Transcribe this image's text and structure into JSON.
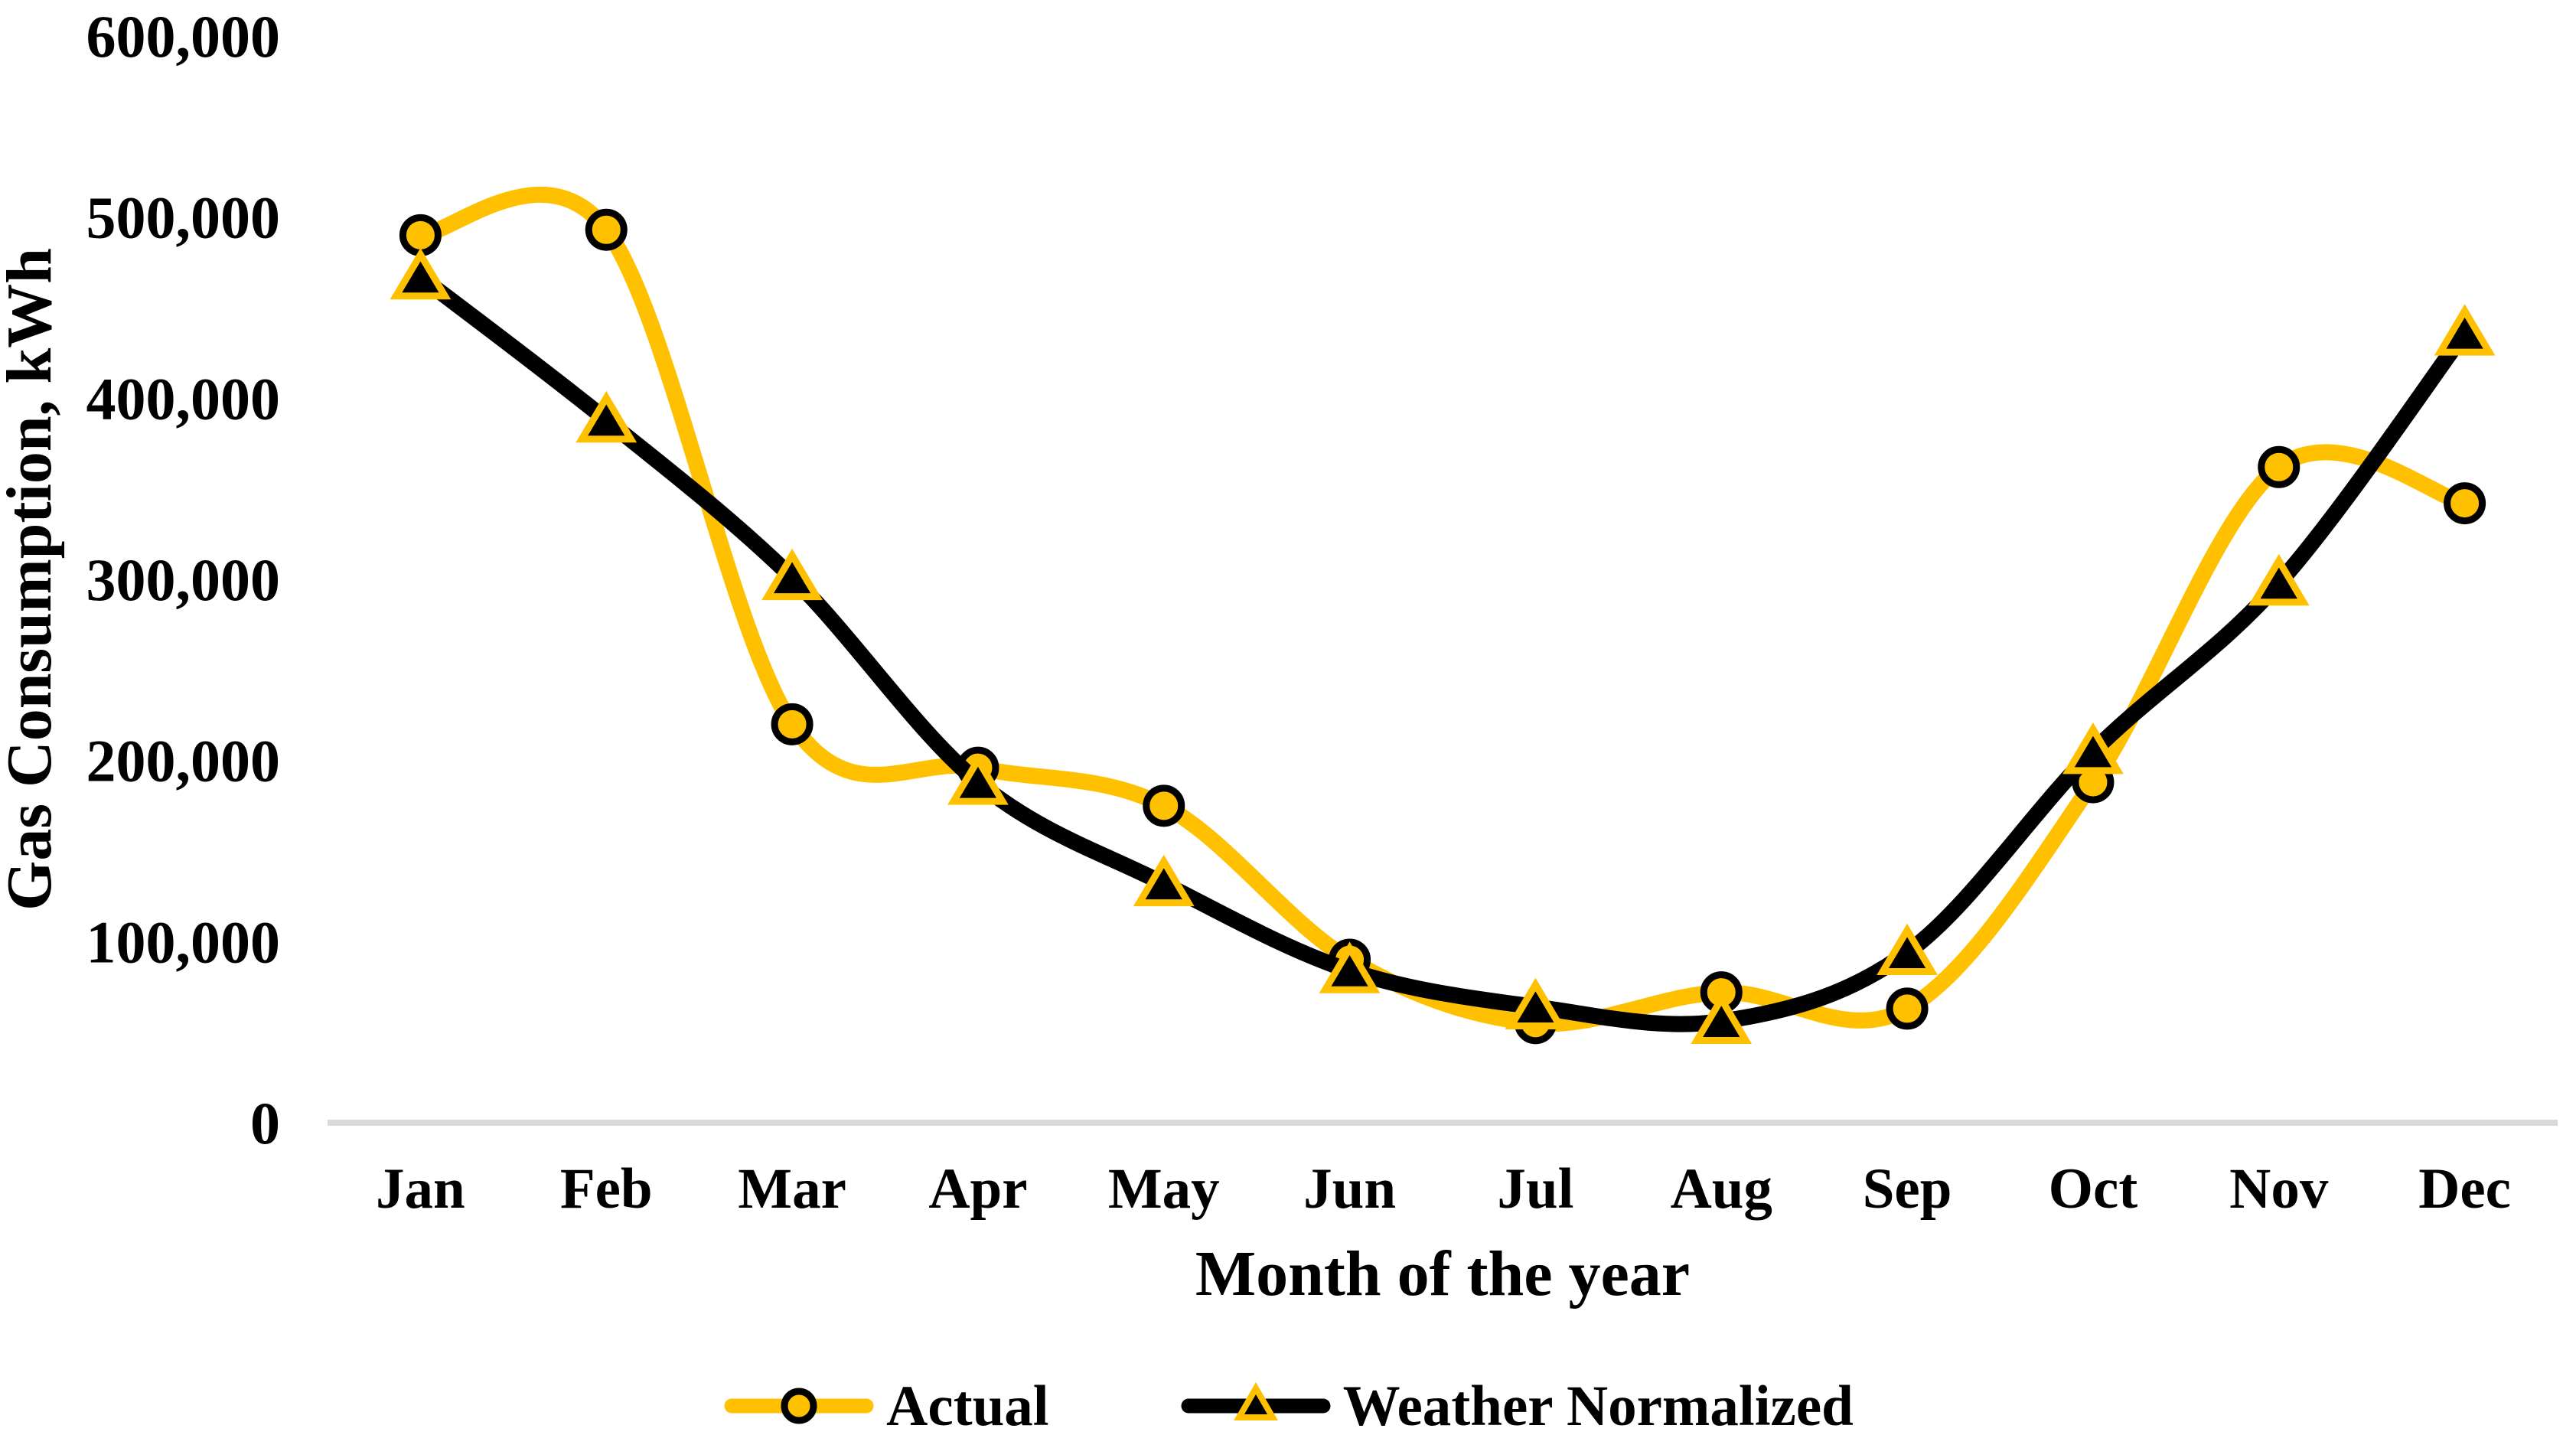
{
  "chart_data": {
    "type": "line",
    "title": "",
    "xlabel": "Month of the year",
    "ylabel": "Gas Consumption, kWh",
    "categories": [
      "Jan",
      "Feb",
      "Mar",
      "Apr",
      "May",
      "Jun",
      "Jul",
      "Aug",
      "Sep",
      "Oct",
      "Nov",
      "Dec"
    ],
    "series": [
      {
        "name": "Actual",
        "line_color": "#FFC000",
        "marker": "circle",
        "marker_fill": "#FFC000",
        "marker_stroke": "#000000",
        "values": [
          490000,
          493000,
          220000,
          196000,
          175000,
          90000,
          55000,
          72000,
          63000,
          188000,
          362000,
          342000
        ]
      },
      {
        "name": "Weather Normalized",
        "line_color": "#000000",
        "marker": "triangle",
        "marker_fill": "#000000",
        "marker_stroke": "#FFC000",
        "values": [
          467000,
          388000,
          301000,
          188000,
          132000,
          84000,
          64000,
          56000,
          94000,
          205000,
          298000,
          436000
        ]
      }
    ],
    "ylim": [
      0,
      600000
    ],
    "y_ticks": [
      {
        "value": 0,
        "label": "0"
      },
      {
        "value": 100000,
        "label": "100,000"
      },
      {
        "value": 200000,
        "label": "200,000"
      },
      {
        "value": 300000,
        "label": "300,000"
      },
      {
        "value": 400000,
        "label": "400,000"
      },
      {
        "value": 500000,
        "label": "500,000"
      },
      {
        "value": 600000,
        "label": "600,000"
      }
    ],
    "grid": false,
    "smooth": true,
    "legend_position": "bottom",
    "axis_line_color": "#D9D9D9",
    "text_color": "#000000",
    "background": "#FFFFFF"
  }
}
